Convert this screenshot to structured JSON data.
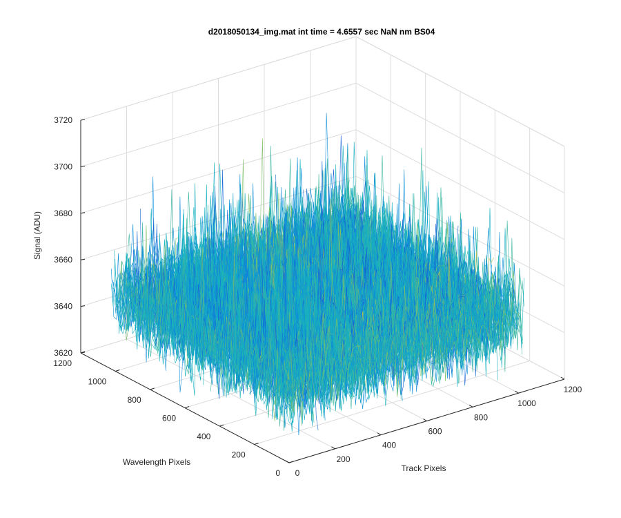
{
  "chart_data": {
    "type": "surface",
    "title": "d2018050134_img.mat int time = 4.6557 sec  NaN nm BS04",
    "xlabel": "Track Pixels",
    "ylabel": "Wavelength Pixels",
    "zlabel": "Signal (ADU)",
    "xlim": [
      0,
      1200
    ],
    "ylim": [
      0,
      1200
    ],
    "zlim": [
      3620,
      3720
    ],
    "x_ticks": [
      "0",
      "200",
      "400",
      "600",
      "800",
      "1000",
      "1200"
    ],
    "y_ticks": [
      "0",
      "200",
      "400",
      "600",
      "800",
      "1000",
      "1200"
    ],
    "z_ticks": [
      "3620",
      "3640",
      "3660",
      "3680",
      "3700",
      "3720"
    ],
    "surface": {
      "x_range": [
        0,
        1024
      ],
      "y_range": [
        0,
        1024
      ],
      "signal_mean": 3652,
      "signal_min": 3625,
      "signal_max": 3705,
      "colormap": "parula"
    },
    "grid": true,
    "colors": {
      "dark_blue": "#1666d4",
      "blue": "#0f8fd8",
      "cyan": "#17b0c0",
      "teal": "#39b6a0",
      "green": "#7fbf6a",
      "olive": "#b8bd4d",
      "yellow": "#f6c72a"
    }
  }
}
